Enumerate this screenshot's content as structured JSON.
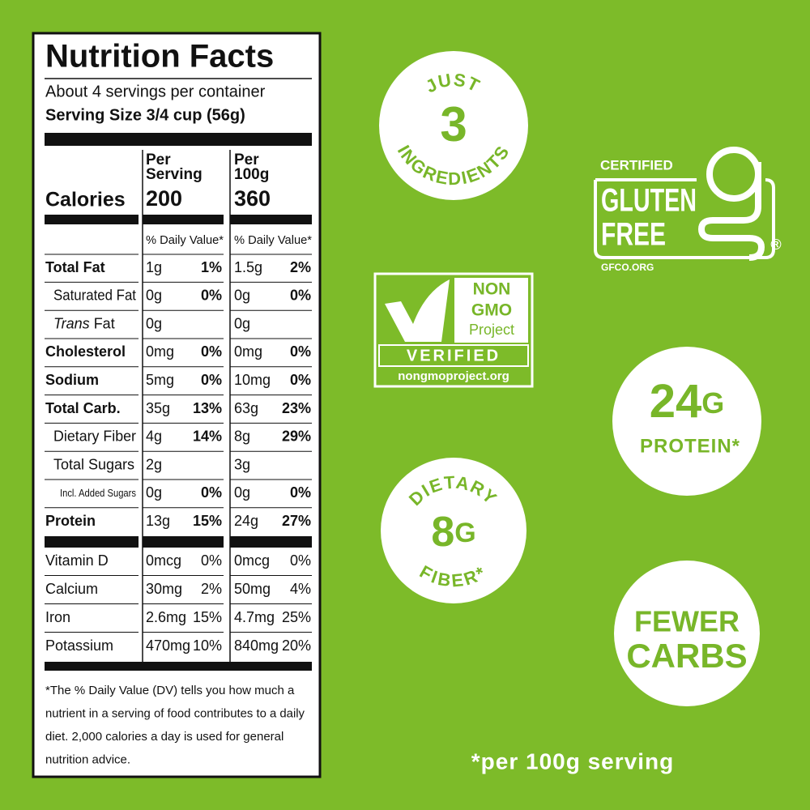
{
  "nutrition_facts": {
    "title": "Nutrition Facts",
    "servings": "About 4 servings per container",
    "serving_size": "Serving Size 3/4 cup (56g)",
    "calories_label": "Calories",
    "columns": [
      {
        "heading": [
          "Per",
          "Serving"
        ],
        "calories": "200"
      },
      {
        "heading": [
          "Per",
          "100g"
        ],
        "calories": "360"
      }
    ],
    "daily_value_heading": "% Daily Value*",
    "nutrients": [
      {
        "label": "Total Fat",
        "per_serving": [
          "1g",
          "1%"
        ],
        "per_100g": [
          "1.5g",
          "2%"
        ]
      },
      {
        "label": "Saturated Fat",
        "per_serving": [
          "0g",
          "0%"
        ],
        "per_100g": [
          "0g",
          "0%"
        ]
      },
      {
        "label_italic": "Trans",
        "label": "Fat",
        "per_serving": [
          "0g"
        ],
        "per_100g": [
          "0g"
        ]
      },
      {
        "label": "Cholesterol",
        "per_serving": [
          "0mg",
          "0%"
        ],
        "per_100g": [
          "0mg",
          "0%"
        ]
      },
      {
        "label": "Sodium",
        "per_serving": [
          "5mg",
          "0%"
        ],
        "per_100g": [
          "10mg",
          "0%"
        ]
      },
      {
        "label": "Total Carb.",
        "per_serving": [
          "35g",
          "13%"
        ],
        "per_100g": [
          "63g",
          "23%"
        ]
      },
      {
        "label": "Dietary Fiber",
        "per_serving": [
          "4g",
          "14%"
        ],
        "per_100g": [
          "8g",
          "29%"
        ]
      },
      {
        "label": "Total Sugars",
        "per_serving": [
          "2g"
        ],
        "per_100g": [
          "3g"
        ]
      },
      {
        "label": "Incl. Added Sugars",
        "per_serving": [
          "0g",
          "0%"
        ],
        "per_100g": [
          "0g",
          "0%"
        ]
      },
      {
        "label": "Protein",
        "per_serving": [
          "13g",
          "15%"
        ],
        "per_100g": [
          "24g",
          "27%"
        ]
      }
    ],
    "vitamins_minerals": [
      {
        "label": "Vitamin D",
        "per_serving": [
          "0mcg",
          "0%"
        ],
        "per_100g": [
          "0mcg",
          "0%"
        ]
      },
      {
        "label": "Calcium",
        "per_serving": [
          "30mg",
          "2%"
        ],
        "per_100g": [
          "50mg",
          "4%"
        ]
      },
      {
        "label": "Iron",
        "per_serving": [
          "2.6mg",
          "15%"
        ],
        "per_100g": [
          "4.7mg",
          "25%"
        ]
      },
      {
        "label": "Potassium",
        "per_serving": [
          "470mg",
          "10%"
        ],
        "per_100g": [
          "840mg",
          "20%"
        ]
      }
    ],
    "footnote": [
      "*The % Daily Value (DV) tells you how much a",
      "nutrient in a serving of food contributes to a daily",
      "diet. 2,000 calories a day is used for general",
      "nutrition advice."
    ]
  },
  "badges": {
    "ingredients": {
      "top": "JUST",
      "number": "3",
      "bottom": "INGREDIENTS"
    },
    "gluten_free": {
      "top": "CERTIFIED",
      "line1": "GLUTEN",
      "line2": "FREE",
      "mark": "®",
      "site": "GFCO.ORG"
    },
    "non_gmo": {
      "line1": "NON",
      "line2": "GMO",
      "line3": "Project",
      "verified": "VERIFIED",
      "site": "nongmoproject.org"
    },
    "protein": {
      "number": "24",
      "unit": "G",
      "label": "PROTEIN*"
    },
    "fiber": {
      "top": "DIETARY",
      "number": "8",
      "unit": "G",
      "bottom": "FIBER*"
    },
    "carbs": {
      "line1": "FEWER",
      "line2": "CARBS"
    }
  },
  "footer_note": "*per 100g serving"
}
